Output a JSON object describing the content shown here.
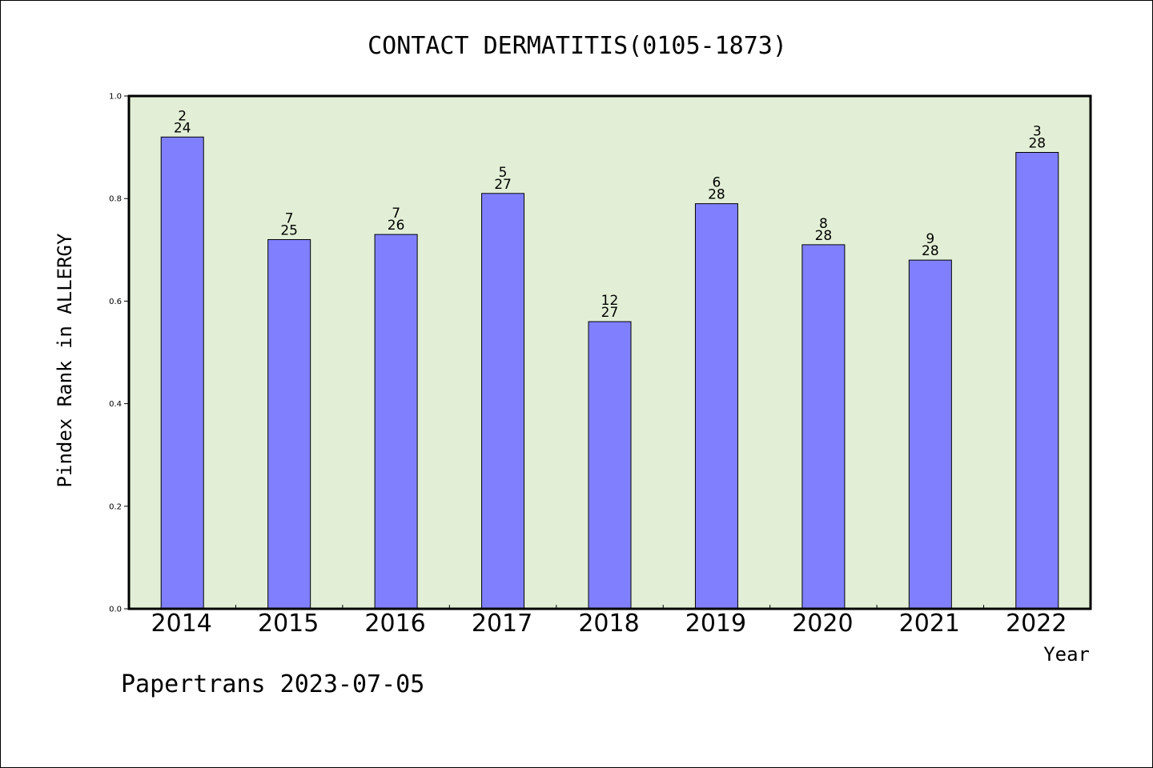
{
  "chart_data": {
    "type": "bar",
    "title": "CONTACT DERMATITIS(0105-1873)",
    "xlabel": "Year",
    "ylabel": "Pindex Rank in ALLERGY",
    "categories": [
      "2014",
      "2015",
      "2016",
      "2017",
      "2018",
      "2019",
      "2020",
      "2021",
      "2022"
    ],
    "values": [
      0.92,
      0.72,
      0.73,
      0.81,
      0.56,
      0.79,
      0.71,
      0.68,
      0.89
    ],
    "bar_labels_top": [
      "2",
      "7",
      "7",
      "5",
      "12",
      "6",
      "8",
      "9",
      "3"
    ],
    "bar_labels_bottom": [
      "24",
      "25",
      "26",
      "27",
      "27",
      "28",
      "28",
      "28",
      "28"
    ],
    "ylim": [
      0,
      1.0
    ],
    "yticks": [
      "0.0",
      "0.2",
      "0.4",
      "0.6",
      "0.8",
      "1.0"
    ],
    "grid": false,
    "colors": {
      "bar": "#8080ff",
      "plot_background": "#e2efd6",
      "axis": "#000000"
    }
  },
  "footer": {
    "text": "Papertrans 2023-07-05"
  }
}
